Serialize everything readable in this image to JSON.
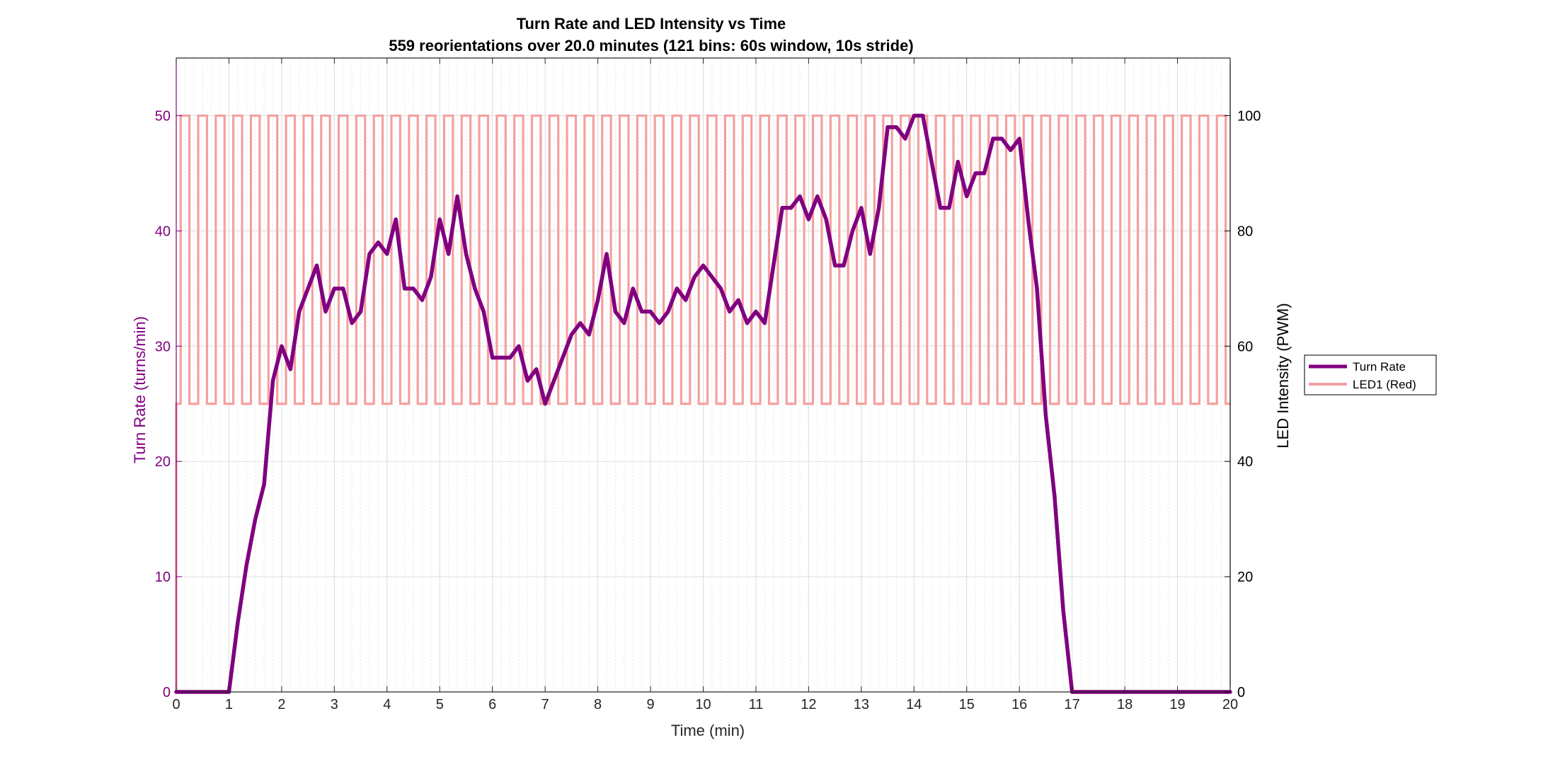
{
  "chart_data": {
    "type": "line",
    "title": "Turn Rate and LED Intensity vs Time",
    "subtitle": "559 reorientations over 20.0 minutes (121 bins: 60s window, 10s stride)",
    "xlabel": "Time (min)",
    "ylabel_left": "Turn Rate (turns/min)",
    "ylabel_right": "LED Intensity (PWM)",
    "xlim": [
      0,
      20
    ],
    "ylim_left": [
      0,
      55
    ],
    "ylim_right": [
      0,
      110
    ],
    "xticks": [
      0,
      1,
      2,
      3,
      4,
      5,
      6,
      7,
      8,
      9,
      10,
      11,
      12,
      13,
      14,
      15,
      16,
      17,
      18,
      19,
      20
    ],
    "yticks_left": [
      0,
      10,
      20,
      30,
      40,
      50
    ],
    "yticks_right": [
      0,
      20,
      40,
      60,
      80,
      100
    ],
    "grid": true,
    "minor_grid": true,
    "legend_position": "outside-right",
    "colors": {
      "turn_rate": "#800080",
      "led": "#f4a0a0",
      "left_axis": "#800080",
      "right_axis": "#000000"
    },
    "series": [
      {
        "name": "Turn Rate",
        "axis": "left",
        "x": [
          0,
          0.1667,
          0.3333,
          0.5,
          0.6667,
          0.8333,
          1,
          1.1667,
          1.3333,
          1.5,
          1.6667,
          1.8333,
          2,
          2.1667,
          2.3333,
          2.5,
          2.6667,
          2.8333,
          3,
          3.1667,
          3.3333,
          3.5,
          3.6667,
          3.8333,
          4,
          4.1667,
          4.3333,
          4.5,
          4.6667,
          4.8333,
          5,
          5.1667,
          5.3333,
          5.5,
          5.6667,
          5.8333,
          6,
          6.1667,
          6.3333,
          6.5,
          6.6667,
          6.8333,
          7,
          7.1667,
          7.3333,
          7.5,
          7.6667,
          7.8333,
          8,
          8.1667,
          8.3333,
          8.5,
          8.6667,
          8.8333,
          9,
          9.1667,
          9.3333,
          9.5,
          9.6667,
          9.8333,
          10,
          10.1667,
          10.3333,
          10.5,
          10.6667,
          10.8333,
          11,
          11.1667,
          11.3333,
          11.5,
          11.6667,
          11.8333,
          12,
          12.1667,
          12.3333,
          12.5,
          12.6667,
          12.8333,
          13,
          13.1667,
          13.3333,
          13.5,
          13.6667,
          13.8333,
          14,
          14.1667,
          14.3333,
          14.5,
          14.6667,
          14.8333,
          15,
          15.1667,
          15.3333,
          15.5,
          15.6667,
          15.8333,
          16,
          16.1667,
          16.3333,
          16.5,
          16.6667,
          16.8333,
          17,
          17.1667,
          17.3333,
          17.5,
          17.6667,
          17.8333,
          18,
          18.1667,
          18.3333,
          18.5,
          18.6667,
          18.8333,
          19,
          19.1667,
          19.3333,
          19.5,
          19.6667,
          19.8333,
          20
        ],
        "values": [
          0,
          0,
          0,
          0,
          0,
          0,
          0,
          6,
          11,
          15,
          18,
          27,
          30,
          28,
          33,
          35,
          37,
          33,
          35,
          35,
          32,
          33,
          38,
          39,
          38,
          41,
          35,
          35,
          34,
          36,
          41,
          38,
          43,
          38,
          35,
          33,
          29,
          29,
          29,
          30,
          27,
          28,
          25,
          27,
          29,
          31,
          32,
          31,
          34,
          38,
          33,
          32,
          35,
          33,
          33,
          32,
          33,
          35,
          34,
          36,
          37,
          36,
          35,
          33,
          34,
          32,
          33,
          32,
          37,
          42,
          42,
          43,
          41,
          43,
          41,
          37,
          37,
          40,
          42,
          38,
          42,
          49,
          49,
          48,
          50,
          50,
          46,
          42,
          42,
          46,
          43,
          45,
          45,
          48,
          48,
          47,
          48,
          41,
          35,
          24,
          17,
          7,
          0,
          0,
          0,
          0,
          0,
          0,
          0,
          0,
          0,
          0,
          0,
          0,
          0,
          0,
          0,
          0,
          0,
          0,
          0
        ]
      },
      {
        "name": "LED1 (Red)",
        "axis": "right",
        "pattern": "square-wave",
        "low": 50,
        "high": 100,
        "period_min": 0.3333,
        "duty_high_min": 0.1667,
        "start_value": 0,
        "cycles": 60
      }
    ]
  }
}
